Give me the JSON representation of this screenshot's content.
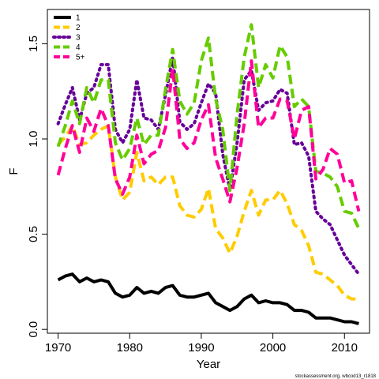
{
  "chart_data": {
    "type": "line",
    "title": "",
    "xlabel": "Year",
    "ylabel": "F",
    "xlim": [
      1968.5,
      2013.5
    ],
    "ylim": [
      -0.02,
      1.68
    ],
    "xticks": [
      1970,
      1980,
      1990,
      2000,
      2010
    ],
    "yticks": [
      0.0,
      0.5,
      1.0,
      1.5
    ],
    "ytick_labels": [
      "0.0",
      "0.5",
      "1.0",
      "1.5"
    ],
    "legend_position": "top-left",
    "credit": "stockassessment.org, wbcod13_r1818",
    "x": [
      1970,
      1971,
      1972,
      1973,
      1974,
      1975,
      1976,
      1977,
      1978,
      1979,
      1980,
      1981,
      1982,
      1983,
      1984,
      1985,
      1986,
      1987,
      1988,
      1989,
      1990,
      1991,
      1992,
      1993,
      1994,
      1995,
      1996,
      1997,
      1998,
      1999,
      2000,
      2001,
      2002,
      2003,
      2004,
      2005,
      2006,
      2007,
      2008,
      2009,
      2010,
      2011,
      2012
    ],
    "series": [
      {
        "name": "1",
        "color": "#000000",
        "dash": "solid",
        "values": [
          0.26,
          0.28,
          0.29,
          0.25,
          0.27,
          0.25,
          0.26,
          0.25,
          0.19,
          0.17,
          0.18,
          0.22,
          0.19,
          0.2,
          0.19,
          0.22,
          0.23,
          0.18,
          0.17,
          0.17,
          0.18,
          0.19,
          0.14,
          0.12,
          0.1,
          0.12,
          0.16,
          0.18,
          0.14,
          0.15,
          0.14,
          0.14,
          0.13,
          0.1,
          0.1,
          0.09,
          0.06,
          0.06,
          0.06,
          0.05,
          0.04,
          0.04,
          0.03
        ]
      },
      {
        "name": "2",
        "color": "#FFCC00",
        "dash": "dashed",
        "values": [
          0.97,
          1.01,
          1.07,
          0.97,
          0.98,
          1.02,
          1.05,
          1.07,
          0.8,
          0.68,
          0.72,
          0.93,
          0.78,
          0.8,
          0.76,
          0.8,
          0.8,
          0.65,
          0.6,
          0.59,
          0.63,
          0.74,
          0.53,
          0.48,
          0.4,
          0.49,
          0.62,
          0.73,
          0.6,
          0.68,
          0.68,
          0.73,
          0.66,
          0.55,
          0.52,
          0.44,
          0.3,
          0.29,
          0.26,
          0.23,
          0.18,
          0.16,
          0.16
        ]
      },
      {
        "name": "3",
        "color": "#660099",
        "dash": "dotted",
        "values": [
          1.08,
          1.18,
          1.27,
          1.1,
          1.24,
          1.27,
          1.39,
          1.39,
          1.05,
          0.98,
          1.05,
          1.31,
          1.11,
          1.1,
          1.05,
          1.23,
          1.43,
          1.09,
          1.05,
          1.08,
          1.19,
          1.29,
          1.24,
          0.92,
          0.73,
          0.98,
          1.31,
          1.36,
          1.15,
          1.19,
          1.2,
          1.26,
          1.24,
          0.97,
          0.98,
          0.91,
          0.62,
          0.58,
          0.55,
          0.47,
          0.39,
          0.34,
          0.29
        ]
      },
      {
        "name": "4",
        "color": "#66CC00",
        "dash": "dashed",
        "values": [
          0.96,
          1.07,
          1.2,
          1.08,
          1.27,
          1.19,
          1.31,
          1.31,
          0.98,
          0.89,
          0.95,
          1.11,
          0.97,
          1.02,
          1.02,
          1.26,
          1.47,
          1.2,
          1.13,
          1.19,
          1.41,
          1.53,
          1.21,
          1.05,
          0.73,
          1.13,
          1.43,
          1.6,
          1.27,
          1.39,
          1.32,
          1.49,
          1.43,
          1.17,
          1.21,
          1.17,
          0.83,
          0.82,
          0.8,
          0.75,
          0.62,
          0.61,
          0.53
        ]
      },
      {
        "name": "5+",
        "color": "#FF0099",
        "dash": "dashed",
        "values": [
          0.81,
          0.95,
          1.07,
          0.93,
          1.11,
          1.04,
          1.16,
          1.07,
          0.79,
          0.71,
          0.8,
          1.02,
          0.87,
          0.92,
          0.94,
          1.06,
          1.37,
          1.0,
          0.95,
          0.98,
          1.1,
          1.18,
          0.9,
          0.79,
          0.67,
          0.85,
          1.08,
          1.41,
          1.06,
          1.11,
          1.11,
          1.21,
          1.2,
          1.0,
          1.15,
          1.17,
          0.79,
          0.84,
          0.95,
          0.92,
          0.77,
          0.78,
          0.62
        ]
      }
    ]
  }
}
